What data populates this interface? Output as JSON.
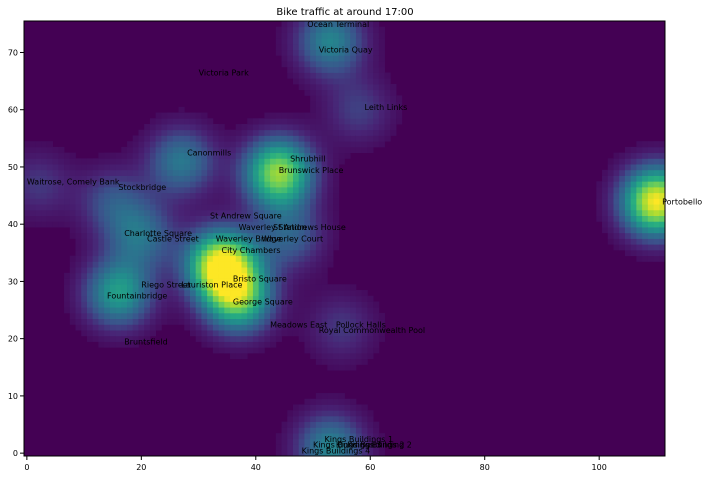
{
  "chart_data": {
    "type": "heatmap",
    "title": "Bike traffic at around 17:00",
    "xlabel": "",
    "ylabel": "",
    "xlim": [
      -0.5,
      111.5
    ],
    "ylim": [
      -0.5,
      75.5
    ],
    "xticks": [
      0,
      20,
      40,
      60,
      80,
      100
    ],
    "yticks": [
      0,
      10,
      20,
      30,
      40,
      50,
      60,
      70
    ],
    "colormap": "viridis",
    "grid": false,
    "hotspots": [
      {
        "x": 34,
        "y": 33,
        "intensity": 1.0
      },
      {
        "x": 110,
        "y": 44,
        "intensity": 1.0
      },
      {
        "x": 44,
        "y": 49,
        "intensity": 0.85
      },
      {
        "x": 37,
        "y": 27,
        "intensity": 0.7
      },
      {
        "x": 16,
        "y": 28,
        "intensity": 0.55
      },
      {
        "x": 53,
        "y": 72,
        "intensity": 0.45
      },
      {
        "x": 27,
        "y": 51,
        "intensity": 0.4
      },
      {
        "x": 53,
        "y": 1,
        "intensity": 0.45
      },
      {
        "x": 20,
        "y": 38,
        "intensity": 0.35
      },
      {
        "x": 15,
        "y": 44,
        "intensity": 0.25
      },
      {
        "x": 2,
        "y": 47,
        "intensity": 0.18
      },
      {
        "x": 58,
        "y": 60,
        "intensity": 0.2
      },
      {
        "x": 46,
        "y": 38,
        "intensity": 0.3
      },
      {
        "x": 55,
        "y": 22,
        "intensity": 0.18
      }
    ],
    "annotations": [
      {
        "text": "Ocean Terminal",
        "x": 49,
        "y": 75
      },
      {
        "text": "Victoria Quay",
        "x": 51,
        "y": 70.5
      },
      {
        "text": "Victoria Park",
        "x": 30,
        "y": 66.5
      },
      {
        "text": "Leith Links",
        "x": 59,
        "y": 60.5
      },
      {
        "text": "Canonmills",
        "x": 28,
        "y": 52.5
      },
      {
        "text": "Shrubhill",
        "x": 46,
        "y": 51.5
      },
      {
        "text": "Brunswick Place",
        "x": 44,
        "y": 49.5
      },
      {
        "text": "Waitrose, Comely Bank",
        "x": 0,
        "y": 47.5
      },
      {
        "text": "Stockbridge",
        "x": 16,
        "y": 46.5
      },
      {
        "text": "Portobello",
        "x": 111,
        "y": 44
      },
      {
        "text": "St Andrew Square",
        "x": 32,
        "y": 41.5
      },
      {
        "text": "Waverley Station",
        "x": 37,
        "y": 39.5
      },
      {
        "text": "St Andrews House",
        "x": 43,
        "y": 39.5
      },
      {
        "text": "Charlotte Square",
        "x": 17,
        "y": 38.5
      },
      {
        "text": "Castle Street",
        "x": 21,
        "y": 37.5
      },
      {
        "text": "Waverley Bridge",
        "x": 33,
        "y": 37.5
      },
      {
        "text": "Waverley Court",
        "x": 41,
        "y": 37.5
      },
      {
        "text": "City Chambers",
        "x": 34,
        "y": 35.5
      },
      {
        "text": "Bristo Square",
        "x": 36,
        "y": 30.5
      },
      {
        "text": "Riego Street",
        "x": 20,
        "y": 29.5
      },
      {
        "text": "Lauriston Place",
        "x": 27,
        "y": 29.5
      },
      {
        "text": "Fountainbridge",
        "x": 14,
        "y": 27.5
      },
      {
        "text": "George Square",
        "x": 36,
        "y": 26.5
      },
      {
        "text": "Meadows East",
        "x": 42.5,
        "y": 22.5
      },
      {
        "text": "Pollock Halls",
        "x": 54,
        "y": 22.5
      },
      {
        "text": "Royal Commonwealth Pool",
        "x": 51,
        "y": 21.5
      },
      {
        "text": "Bruntsfield",
        "x": 17,
        "y": 19.5
      },
      {
        "text": "Kings Buildings 1",
        "x": 52,
        "y": 2.5
      },
      {
        "text": "Kings Buildings 3",
        "x": 50,
        "y": 1.5
      },
      {
        "text": "Kings Buildings 2",
        "x": 54,
        "y": 1.5
      },
      {
        "text": "Kings Building 2",
        "x": 56,
        "y": 1.5
      },
      {
        "text": "Kings Buildings 4",
        "x": 48,
        "y": 0.5
      }
    ]
  }
}
